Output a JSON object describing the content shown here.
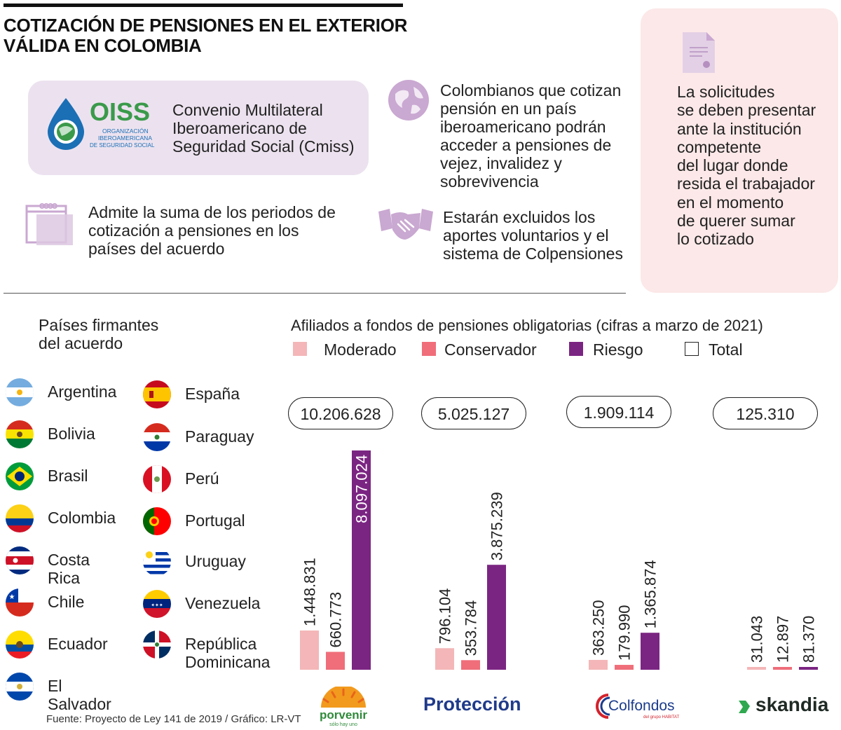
{
  "title": "COTIZACIÓN DE PENSIONES EN EL EXTERIOR VÁLIDA EN COLOMBIA",
  "oiss": {
    "logo_name": "OISS",
    "logo_sub1": "ORGANIZACIÓN",
    "logo_sub2": "IBEROAMERICANA",
    "logo_sub3": "DE SEGURIDAD SOCIAL",
    "text": "Convenio Multilateral Iberoamericano de Seguridad Social (Cmiss)"
  },
  "facts": {
    "globe": "Colombianos que cotizan pensión en un país iberoamericano podrán acceder a pensiones de vejez, invalidez y sobrevivencia",
    "calendar": "Admite la suma de los periodos de cotización a pensiones en los países del acuerdo",
    "handshake": "Estarán excluidos los aportes voluntarios y el sistema de Colpensiones",
    "document": "La solicitudes\nse deben presentar\nante la institución\ncompetente\ndel lugar donde\nresida el trabajador\nen el momento\nde querer sumar\nlo cotizado"
  },
  "countries": {
    "title": "Países firmantes\ndel acuerdo",
    "list": [
      {
        "name": "Argentina",
        "icon": "argentina-flag-icon"
      },
      {
        "name": "Bolivia",
        "icon": "bolivia-flag-icon"
      },
      {
        "name": "Brasil",
        "icon": "brasil-flag-icon"
      },
      {
        "name": "Colombia",
        "icon": "colombia-flag-icon"
      },
      {
        "name": "Costa Rica",
        "icon": "costa-rica-flag-icon"
      },
      {
        "name": "Chile",
        "icon": "chile-flag-icon"
      },
      {
        "name": "Ecuador",
        "icon": "ecuador-flag-icon"
      },
      {
        "name": "El Salvador",
        "icon": "el-salvador-flag-icon"
      },
      {
        "name": "España",
        "icon": "espana-flag-icon"
      },
      {
        "name": "Paraguay",
        "icon": "paraguay-flag-icon"
      },
      {
        "name": "Perú",
        "icon": "peru-flag-icon"
      },
      {
        "name": "Portugal",
        "icon": "portugal-flag-icon"
      },
      {
        "name": "Uruguay",
        "icon": "uruguay-flag-icon"
      },
      {
        "name": "Venezuela",
        "icon": "venezuela-flag-icon"
      },
      {
        "name": "República\nDominicana",
        "icon": "republica-dominicana-flag-icon"
      }
    ]
  },
  "colors": {
    "moderado": "#f4b6b8",
    "conservador": "#ef6e7a",
    "riesgo": "#7b2582",
    "lavender": "#ece2ef",
    "pink_box": "#fce8e8",
    "icon_purple": "#c9a8d1"
  },
  "chart_data": {
    "type": "bar",
    "title": "Afiliados a fondos de pensiones obligatorias (cifras a marzo de 2021)",
    "legend": [
      "Moderado",
      "Conservador",
      "Riesgo",
      "Total"
    ],
    "categories": [
      "Porvenir",
      "Protección",
      "Colfondos",
      "Skandia"
    ],
    "series": [
      {
        "name": "Moderado",
        "values": [
          1448831,
          796104,
          363250,
          31043
        ],
        "labels": [
          "1.448.831",
          "796.104",
          "363.250",
          "31.043"
        ]
      },
      {
        "name": "Conservador",
        "values": [
          660773,
          353784,
          179990,
          12897
        ],
        "labels": [
          "660.773",
          "353.784",
          "179.990",
          "12.897"
        ]
      },
      {
        "name": "Riesgo",
        "values": [
          8097024,
          3875239,
          1365874,
          81370
        ],
        "labels": [
          "8.097.024",
          "3.875.239",
          "1.365.874",
          "81.370"
        ]
      }
    ],
    "totals": [
      "10.206.628",
      "5.025.127",
      "1.909.114",
      "125.310"
    ],
    "ylim": [
      0,
      8097024
    ]
  },
  "logos": {
    "porvenir": "porvenir",
    "porvenir_tag": "sólo hay uno",
    "proteccion": "Protección",
    "colfondos": "Colfondos",
    "colfondos_tag": "del grupo HABITAT",
    "skandia": "skandia"
  },
  "source": "Fuente: Proyecto de Ley 141 de 2019 / Gráfico: LR-VT"
}
